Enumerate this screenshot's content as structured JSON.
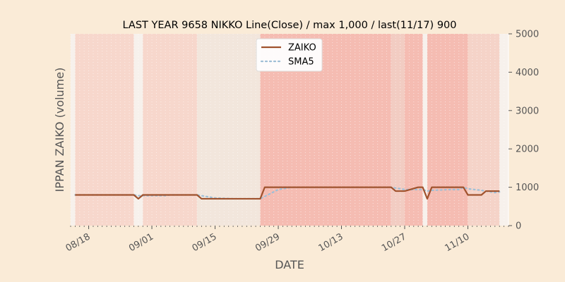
{
  "chart_data": {
    "type": "line",
    "title": "LAST YEAR 9658 NIKKO Line(Close) / max 1,000 / last(11/17) 900",
    "xlabel": "DATE",
    "ylabel": "IPPAN ZAIKO (volume)",
    "ylim": [
      0,
      5000
    ],
    "yticks": [
      0,
      1000,
      2000,
      3000,
      4000,
      5000
    ],
    "y_axis_side": "right",
    "xlim": [
      "2023-08-14",
      "2023-11-19"
    ],
    "xticks": [
      {
        "date": "2023-08-18",
        "label": "08/18"
      },
      {
        "date": "2023-09-01",
        "label": "09/01"
      },
      {
        "date": "2023-09-15",
        "label": "09/15"
      },
      {
        "date": "2023-09-29",
        "label": "09/29"
      },
      {
        "date": "2023-10-13",
        "label": "10/13"
      },
      {
        "date": "2023-10-27",
        "label": "10/27"
      },
      {
        "date": "2023-11-10",
        "label": "11/10"
      }
    ],
    "grid": true,
    "legend_position": "top-center",
    "series": [
      {
        "name": "ZAIKO",
        "color": "#a0522d",
        "style": "solid",
        "points": [
          [
            "2023-08-15",
            800
          ],
          [
            "2023-08-16",
            800
          ],
          [
            "2023-08-17",
            800
          ],
          [
            "2023-08-18",
            800
          ],
          [
            "2023-08-21",
            800
          ],
          [
            "2023-08-22",
            800
          ],
          [
            "2023-08-23",
            800
          ],
          [
            "2023-08-24",
            800
          ],
          [
            "2023-08-25",
            800
          ],
          [
            "2023-08-28",
            800
          ],
          [
            "2023-08-29",
            700
          ],
          [
            "2023-08-30",
            800
          ],
          [
            "2023-08-31",
            800
          ],
          [
            "2023-09-01",
            800
          ],
          [
            "2023-09-04",
            800
          ],
          [
            "2023-09-05",
            800
          ],
          [
            "2023-09-06",
            800
          ],
          [
            "2023-09-07",
            800
          ],
          [
            "2023-09-08",
            800
          ],
          [
            "2023-09-11",
            800
          ],
          [
            "2023-09-12",
            700
          ],
          [
            "2023-09-13",
            700
          ],
          [
            "2023-09-14",
            700
          ],
          [
            "2023-09-15",
            700
          ],
          [
            "2023-09-19",
            700
          ],
          [
            "2023-09-20",
            700
          ],
          [
            "2023-09-21",
            700
          ],
          [
            "2023-09-22",
            700
          ],
          [
            "2023-09-25",
            700
          ],
          [
            "2023-09-26",
            1000
          ],
          [
            "2023-09-27",
            1000
          ],
          [
            "2023-09-28",
            1000
          ],
          [
            "2023-09-29",
            1000
          ],
          [
            "2023-10-02",
            1000
          ],
          [
            "2023-10-03",
            1000
          ],
          [
            "2023-10-04",
            1000
          ],
          [
            "2023-10-05",
            1000
          ],
          [
            "2023-10-06",
            1000
          ],
          [
            "2023-10-10",
            1000
          ],
          [
            "2023-10-11",
            1000
          ],
          [
            "2023-10-12",
            1000
          ],
          [
            "2023-10-13",
            1000
          ],
          [
            "2023-10-16",
            1000
          ],
          [
            "2023-10-17",
            1000
          ],
          [
            "2023-10-18",
            1000
          ],
          [
            "2023-10-19",
            1000
          ],
          [
            "2023-10-20",
            1000
          ],
          [
            "2023-10-23",
            1000
          ],
          [
            "2023-10-24",
            1000
          ],
          [
            "2023-10-25",
            900
          ],
          [
            "2023-10-26",
            900
          ],
          [
            "2023-10-27",
            900
          ],
          [
            "2023-10-30",
            1000
          ],
          [
            "2023-10-31",
            1000
          ],
          [
            "2023-11-01",
            700
          ],
          [
            "2023-11-02",
            1000
          ],
          [
            "2023-11-06",
            1000
          ],
          [
            "2023-11-07",
            1000
          ],
          [
            "2023-11-08",
            1000
          ],
          [
            "2023-11-09",
            1000
          ],
          [
            "2023-11-10",
            800
          ],
          [
            "2023-11-13",
            800
          ],
          [
            "2023-11-14",
            900
          ],
          [
            "2023-11-15",
            900
          ],
          [
            "2023-11-16",
            900
          ],
          [
            "2023-11-17",
            900
          ]
        ]
      },
      {
        "name": "SMA5",
        "color": "#9fbfd6",
        "style": "dotted",
        "points": [
          [
            "2023-08-15",
            800
          ],
          [
            "2023-08-16",
            800
          ],
          [
            "2023-08-17",
            800
          ],
          [
            "2023-08-18",
            800
          ],
          [
            "2023-08-21",
            800
          ],
          [
            "2023-08-22",
            800
          ],
          [
            "2023-08-23",
            800
          ],
          [
            "2023-08-24",
            800
          ],
          [
            "2023-08-25",
            800
          ],
          [
            "2023-08-28",
            800
          ],
          [
            "2023-08-29",
            780
          ],
          [
            "2023-08-30",
            780
          ],
          [
            "2023-08-31",
            780
          ],
          [
            "2023-09-01",
            780
          ],
          [
            "2023-09-04",
            780
          ],
          [
            "2023-09-05",
            800
          ],
          [
            "2023-09-06",
            800
          ],
          [
            "2023-09-07",
            800
          ],
          [
            "2023-09-08",
            800
          ],
          [
            "2023-09-11",
            800
          ],
          [
            "2023-09-12",
            780
          ],
          [
            "2023-09-13",
            760
          ],
          [
            "2023-09-14",
            740
          ],
          [
            "2023-09-15",
            720
          ],
          [
            "2023-09-19",
            700
          ],
          [
            "2023-09-20",
            700
          ],
          [
            "2023-09-21",
            700
          ],
          [
            "2023-09-22",
            700
          ],
          [
            "2023-09-25",
            700
          ],
          [
            "2023-09-26",
            760
          ],
          [
            "2023-09-27",
            820
          ],
          [
            "2023-09-28",
            880
          ],
          [
            "2023-09-29",
            940
          ],
          [
            "2023-10-02",
            1000
          ],
          [
            "2023-10-03",
            1000
          ],
          [
            "2023-10-04",
            1000
          ],
          [
            "2023-10-05",
            1000
          ],
          [
            "2023-10-06",
            1000
          ],
          [
            "2023-10-10",
            1000
          ],
          [
            "2023-10-11",
            1000
          ],
          [
            "2023-10-12",
            1000
          ],
          [
            "2023-10-13",
            1000
          ],
          [
            "2023-10-16",
            1000
          ],
          [
            "2023-10-17",
            1000
          ],
          [
            "2023-10-18",
            1000
          ],
          [
            "2023-10-19",
            1000
          ],
          [
            "2023-10-20",
            1000
          ],
          [
            "2023-10-23",
            1000
          ],
          [
            "2023-10-24",
            1000
          ],
          [
            "2023-10-25",
            980
          ],
          [
            "2023-10-26",
            960
          ],
          [
            "2023-10-27",
            940
          ],
          [
            "2023-10-30",
            940
          ],
          [
            "2023-10-31",
            940
          ],
          [
            "2023-11-01",
            900
          ],
          [
            "2023-11-02",
            920
          ],
          [
            "2023-11-06",
            940
          ],
          [
            "2023-11-07",
            940
          ],
          [
            "2023-11-08",
            940
          ],
          [
            "2023-11-09",
            1000
          ],
          [
            "2023-11-10",
            960
          ],
          [
            "2023-11-13",
            920
          ],
          [
            "2023-11-14",
            900
          ],
          [
            "2023-11-15",
            880
          ],
          [
            "2023-11-16",
            860
          ],
          [
            "2023-11-17",
            880
          ]
        ]
      }
    ],
    "background_bands": [
      {
        "from": "2023-08-15",
        "to": "2023-08-28",
        "color": "#f7d7cc"
      },
      {
        "from": "2023-08-30",
        "to": "2023-09-11",
        "color": "#f7d7cc"
      },
      {
        "from": "2023-09-11",
        "to": "2023-09-25",
        "color": "#f2e6dc"
      },
      {
        "from": "2023-09-25",
        "to": "2023-10-24",
        "color": "#f5bcb2"
      },
      {
        "from": "2023-10-24",
        "to": "2023-10-27",
        "color": "#f2ccc2"
      },
      {
        "from": "2023-10-27",
        "to": "2023-10-31",
        "color": "#f5bcb2"
      },
      {
        "from": "2023-11-01",
        "to": "2023-11-10",
        "color": "#f5bcb2"
      },
      {
        "from": "2023-11-10",
        "to": "2023-11-17",
        "color": "#f5d3c8"
      }
    ],
    "plot_background": "#f7f1ec"
  }
}
